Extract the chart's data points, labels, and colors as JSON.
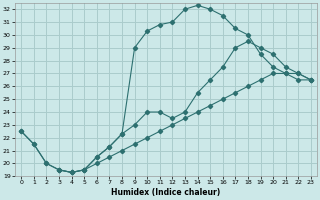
{
  "xlabel": "Humidex (Indice chaleur)",
  "bg_color": "#cce8e8",
  "grid_color": "#aacccc",
  "line_color": "#2d7070",
  "xlim": [
    -0.5,
    23.5
  ],
  "ylim": [
    19,
    32.5
  ],
  "xticks": [
    0,
    1,
    2,
    3,
    4,
    5,
    6,
    7,
    8,
    9,
    10,
    11,
    12,
    13,
    14,
    15,
    16,
    17,
    18,
    19,
    20,
    21,
    22,
    23
  ],
  "yticks": [
    19,
    20,
    21,
    22,
    23,
    24,
    25,
    26,
    27,
    28,
    29,
    30,
    31,
    32
  ],
  "line1_x": [
    0,
    1,
    2,
    3,
    4,
    5,
    6,
    7,
    8,
    9,
    10,
    11,
    12,
    13,
    14,
    15,
    16,
    17,
    18,
    19,
    20,
    21,
    22,
    23
  ],
  "line1_y": [
    22.5,
    21.5,
    20.0,
    19.5,
    19.3,
    19.5,
    20.5,
    21.3,
    22.3,
    29.0,
    30.3,
    30.8,
    31.0,
    32.0,
    32.3,
    32.0,
    31.5,
    30.5,
    30.0,
    28.5,
    27.5,
    27.0,
    27.0,
    26.5
  ],
  "line2_x": [
    0,
    1,
    2,
    3,
    4,
    5,
    6,
    7,
    8,
    9,
    10,
    11,
    12,
    13,
    14,
    15,
    16,
    17,
    18,
    19,
    20,
    21,
    22,
    23
  ],
  "line2_y": [
    22.5,
    21.5,
    20.0,
    19.5,
    19.3,
    19.5,
    20.5,
    21.3,
    22.3,
    23.0,
    24.0,
    24.0,
    23.5,
    24.0,
    25.5,
    26.5,
    27.5,
    29.0,
    29.5,
    29.0,
    28.5,
    27.5,
    27.0,
    26.5
  ],
  "line3_x": [
    3,
    4,
    5,
    6,
    7,
    8,
    9,
    10,
    11,
    12,
    13,
    14,
    15,
    16,
    17,
    18,
    19,
    20,
    21,
    22,
    23
  ],
  "line3_y": [
    19.5,
    19.3,
    19.5,
    20.0,
    20.5,
    21.0,
    21.5,
    22.0,
    22.5,
    23.0,
    23.5,
    24.0,
    24.5,
    25.0,
    25.5,
    26.0,
    26.5,
    27.0,
    27.0,
    26.5,
    26.5
  ]
}
